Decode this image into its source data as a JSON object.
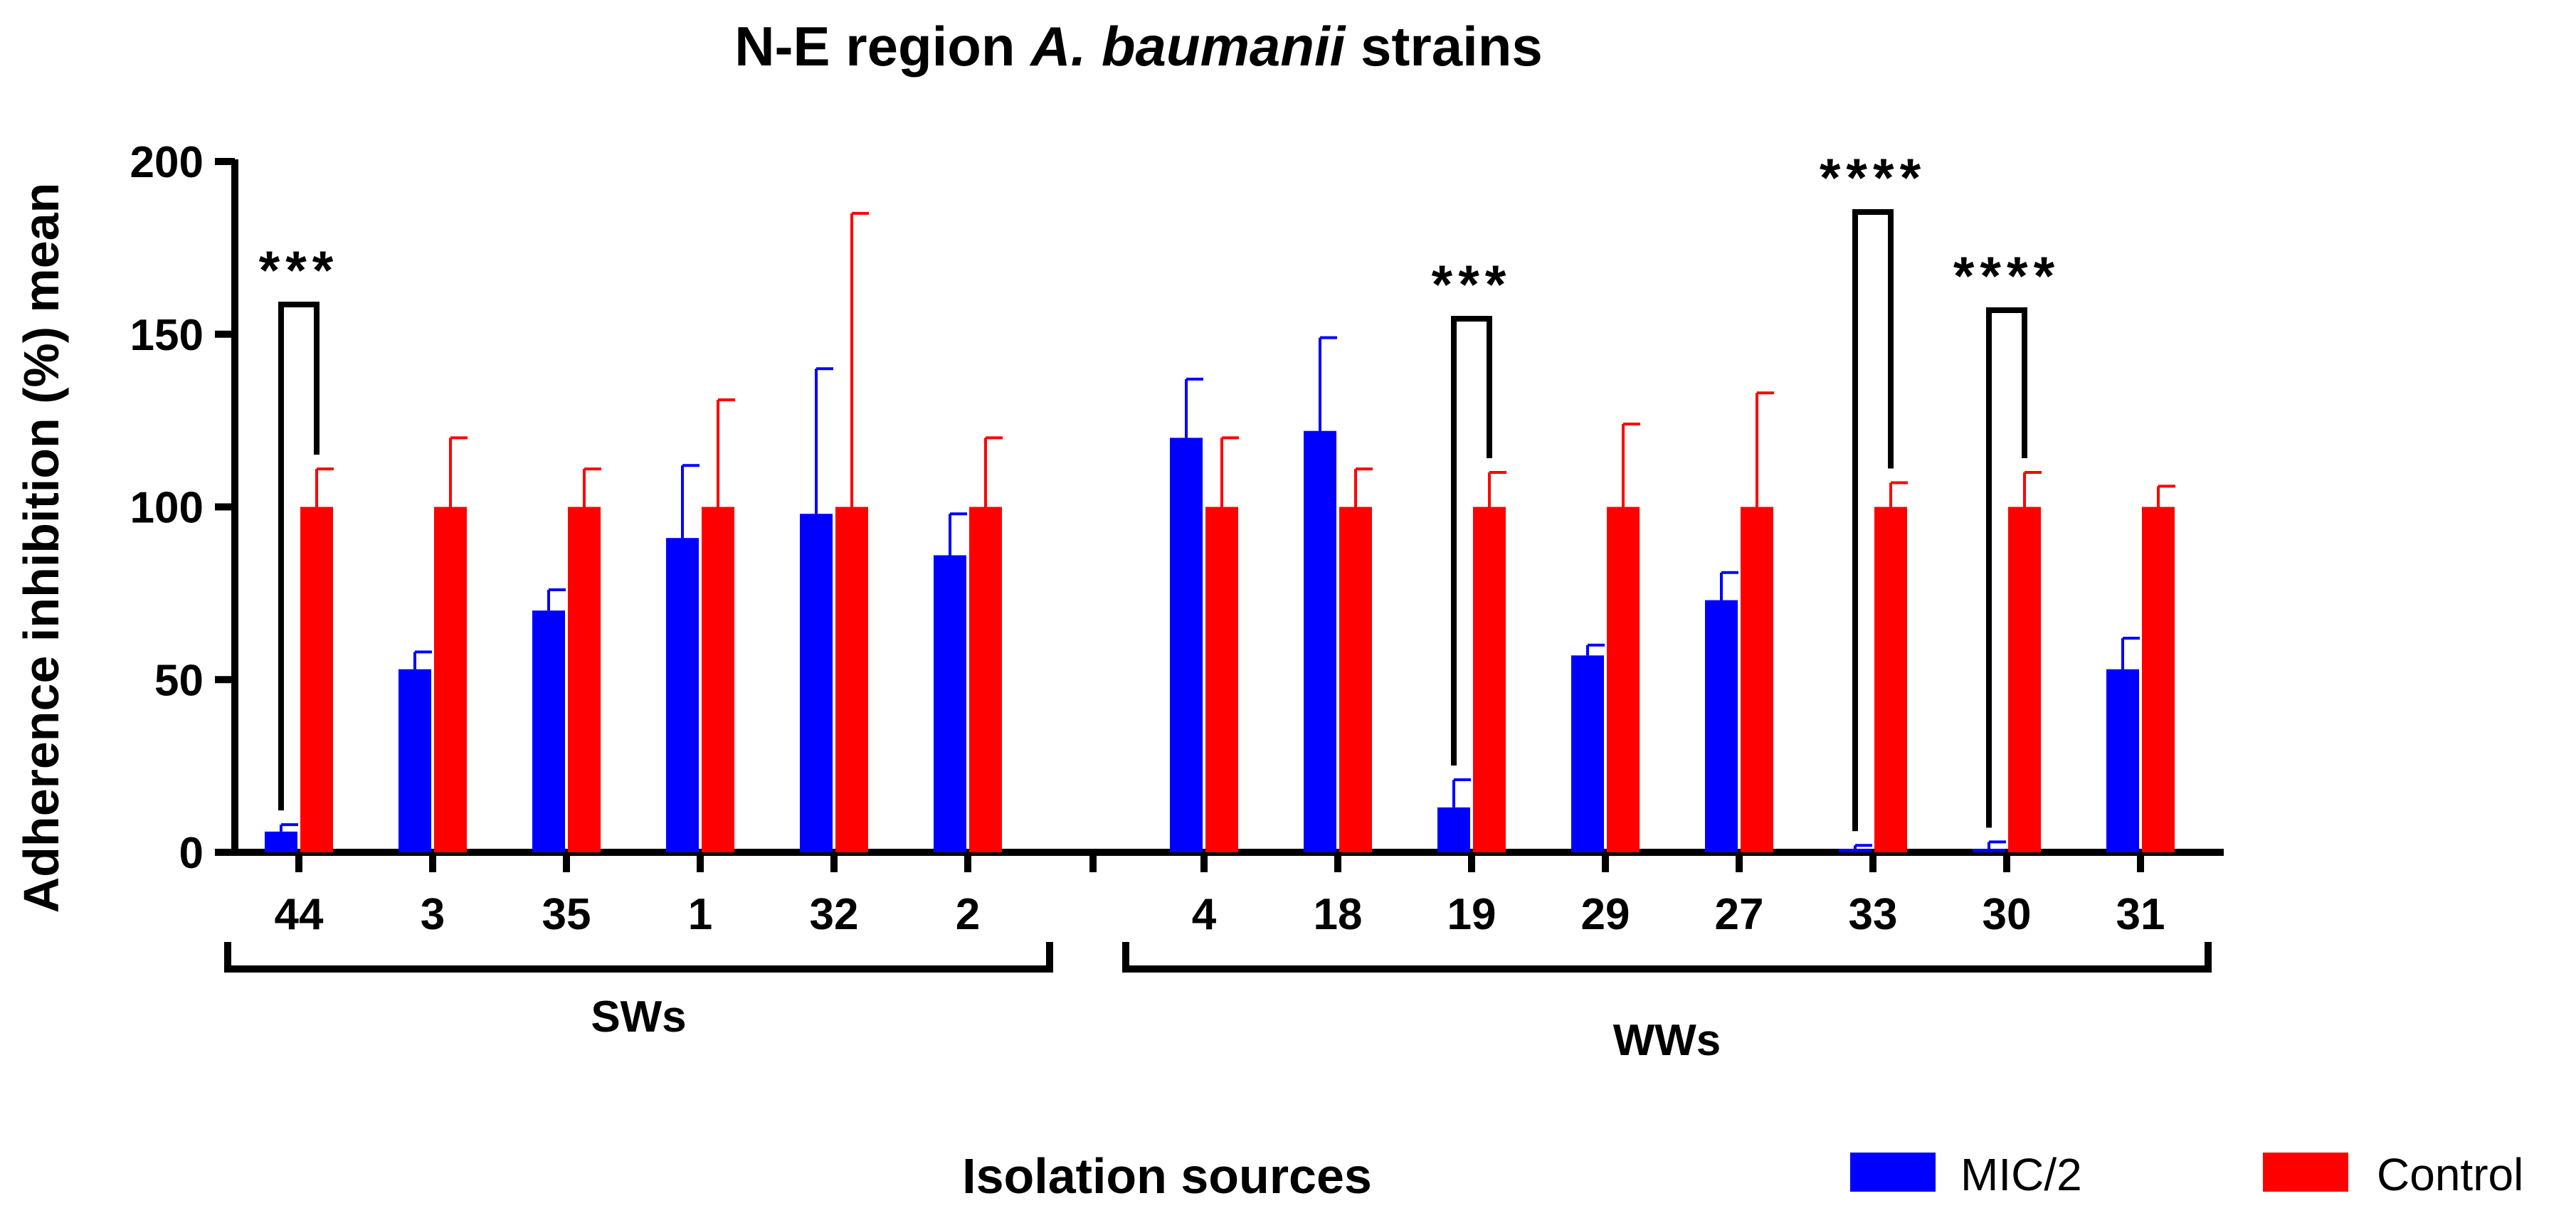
{
  "chart_data": {
    "type": "bar",
    "title_plain": "N-E region ",
    "title_italic": "A. baumanii",
    "title_tail": " strains",
    "ylabel": "Adherence inhibition (%) mean",
    "xlabel": "Isolation sources",
    "ylim": [
      0,
      200
    ],
    "yticks": [
      "0",
      "50",
      "100",
      "150",
      "200"
    ],
    "ytick_values": [
      0,
      50,
      100,
      150,
      200
    ],
    "groups": [
      {
        "label": "SWs",
        "categories": [
          "44",
          "3",
          "35",
          "1",
          "32",
          "2"
        ]
      },
      {
        "label": "WWs",
        "categories": [
          "4",
          "18",
          "19",
          "29",
          "27",
          "33",
          "30",
          "31"
        ]
      }
    ],
    "series": [
      {
        "name": "MIC/2",
        "color": "#0000ff",
        "values": [
          6,
          53,
          70,
          91,
          98,
          86,
          120,
          122,
          13,
          57,
          73,
          1,
          1,
          53
        ],
        "errors": [
          2,
          5,
          6,
          21,
          42,
          12,
          17,
          27,
          8,
          3,
          8,
          1,
          2,
          9
        ]
      },
      {
        "name": "Control",
        "color": "#ff0000",
        "values": [
          100,
          100,
          100,
          100,
          100,
          100,
          100,
          100,
          100,
          100,
          100,
          100,
          100,
          100
        ],
        "errors": [
          11,
          20,
          11,
          31,
          85,
          20,
          20,
          11,
          10,
          24,
          33,
          7,
          10,
          6
        ]
      }
    ],
    "significance": [
      {
        "index": 0,
        "label": "***"
      },
      {
        "index": 8,
        "label": "***"
      },
      {
        "index": 11,
        "label": "****"
      },
      {
        "index": 12,
        "label": "****"
      }
    ]
  }
}
